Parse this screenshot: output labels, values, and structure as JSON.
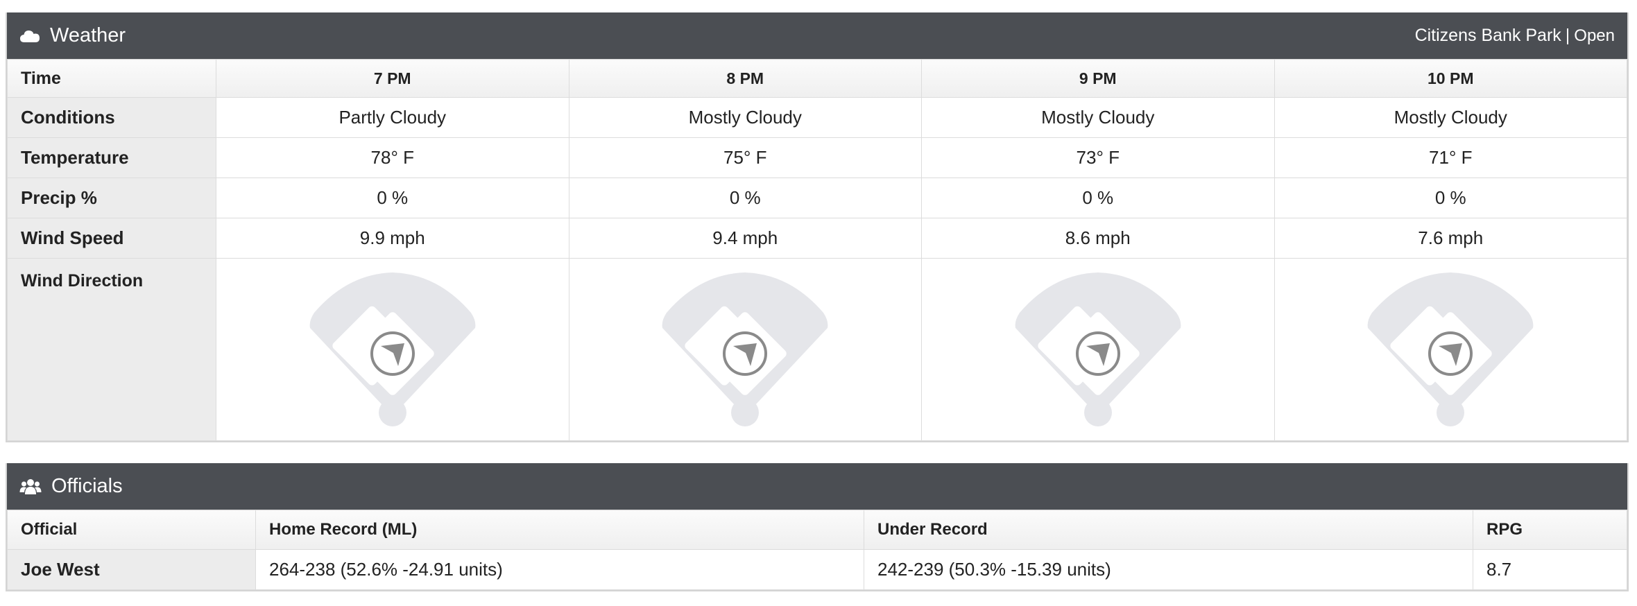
{
  "weather": {
    "title": "Weather",
    "icon": "cloud-icon",
    "venue": "Citizens Bank Park",
    "separator": "|",
    "roof_status": "Open",
    "labels": {
      "time": "Time",
      "conditions": "Conditions",
      "temperature": "Temperature",
      "precip": "Precip %",
      "wind_speed": "Wind Speed",
      "wind_direction": "Wind Direction"
    },
    "hours": [
      {
        "time": "7 PM",
        "conditions": "Partly Cloudy",
        "temperature": "78° F",
        "precip": "0 %",
        "wind_speed": "9.9 mph"
      },
      {
        "time": "8 PM",
        "conditions": "Mostly Cloudy",
        "temperature": "75° F",
        "precip": "0 %",
        "wind_speed": "9.4 mph"
      },
      {
        "time": "9 PM",
        "conditions": "Mostly Cloudy",
        "temperature": "73° F",
        "precip": "0 %",
        "wind_speed": "8.6 mph"
      },
      {
        "time": "10 PM",
        "conditions": "Mostly Cloudy",
        "temperature": "71° F",
        "precip": "0 %",
        "wind_speed": "7.6 mph"
      }
    ],
    "colors": {
      "header_bg": "#4b4e53",
      "field": "#e5e6ea",
      "arrow": "#8a8a8a"
    }
  },
  "officials": {
    "title": "Officials",
    "icon": "users-icon",
    "columns": {
      "official": "Official",
      "home_record": "Home Record (ML)",
      "under_record": "Under Record",
      "rpg": "RPG"
    },
    "rows": [
      {
        "official": "Joe West",
        "home_record": "264-238 (52.6% -24.91 units)",
        "under_record": "242-239 (50.3% -15.39 units)",
        "rpg": "8.7"
      }
    ]
  }
}
